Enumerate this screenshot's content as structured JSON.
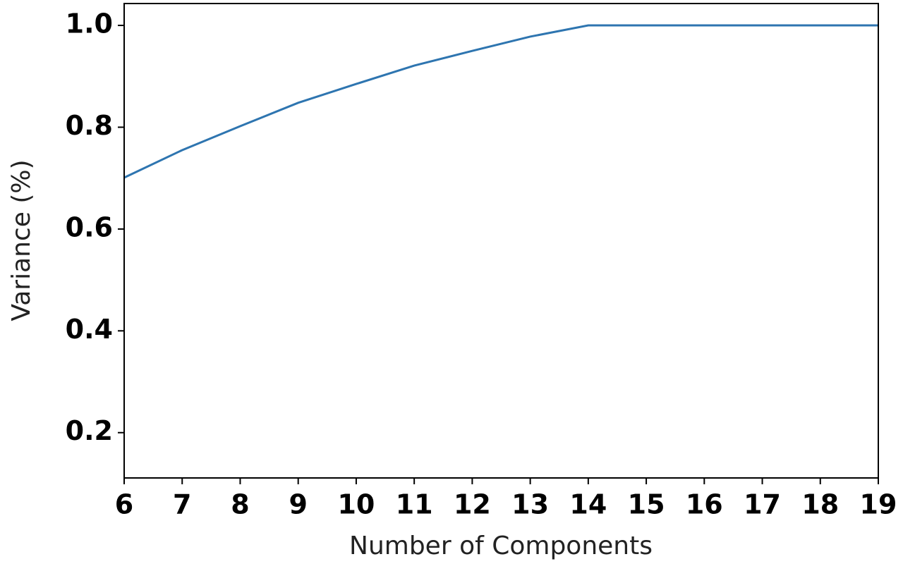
{
  "chart_data": {
    "type": "line",
    "x_label": "Number of Components",
    "y_label": "Variance (%)",
    "x": [
      6,
      7,
      8,
      9,
      10,
      11,
      12,
      13,
      14,
      15,
      16,
      17,
      18,
      19
    ],
    "values": [
      0.701,
      0.755,
      0.802,
      0.848,
      0.885,
      0.921,
      0.95,
      0.978,
      1.0,
      1.0,
      1.0,
      1.0,
      1.0,
      1.0
    ],
    "color": "#2e75b0",
    "xlim": [
      6,
      19
    ],
    "xticks": [
      6,
      7,
      8,
      9,
      10,
      11,
      12,
      13,
      14,
      15,
      16,
      17,
      18,
      19
    ],
    "ylim": [
      0.111,
      1.043
    ],
    "yticks": [
      0.2,
      0.4,
      0.6,
      0.8,
      {
        "value": 1.0,
        "label": "1.0"
      }
    ],
    "grid": false
  }
}
